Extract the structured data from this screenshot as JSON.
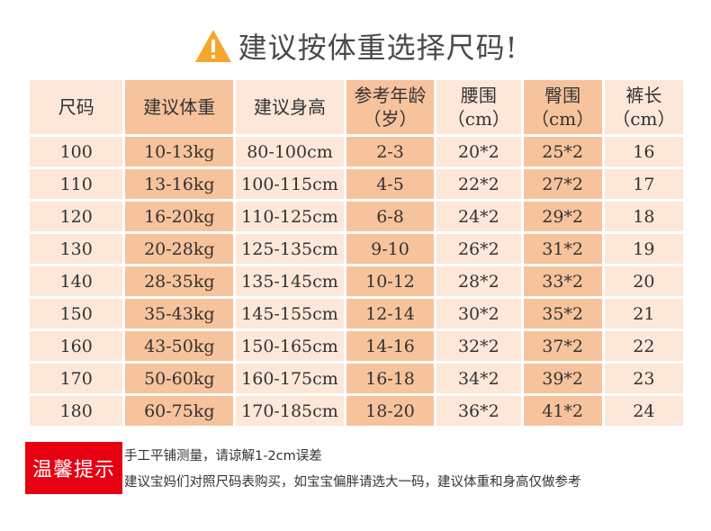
{
  "title": "建议按体重选择尺码!",
  "icon": "warning-triangle-icon",
  "colors": {
    "light_cell": "#fde7d8",
    "dark_cell": "#f7c39c",
    "badge": "#e60012"
  },
  "table": {
    "headers": [
      {
        "line1": "尺码",
        "line2": ""
      },
      {
        "line1": "建议体重",
        "line2": ""
      },
      {
        "line1": "建议身高",
        "line2": ""
      },
      {
        "line1": "参考年龄",
        "line2": "（岁）"
      },
      {
        "line1": "腰围",
        "line2": "（cm）"
      },
      {
        "line1": "臀围",
        "line2": "（cm）"
      },
      {
        "line1": "裤长",
        "line2": "（cm）"
      }
    ],
    "rows": [
      [
        "100",
        "10-13kg",
        "80-100cm",
        "2-3",
        "20*2",
        "25*2",
        "16"
      ],
      [
        "110",
        "13-16kg",
        "100-115cm",
        "4-5",
        "22*2",
        "27*2",
        "17"
      ],
      [
        "120",
        "16-20kg",
        "110-125cm",
        "6-8",
        "24*2",
        "29*2",
        "18"
      ],
      [
        "130",
        "20-28kg",
        "125-135cm",
        "9-10",
        "26*2",
        "31*2",
        "19"
      ],
      [
        "140",
        "28-35kg",
        "135-145cm",
        "10-12",
        "28*2",
        "33*2",
        "20"
      ],
      [
        "150",
        "35-43kg",
        "145-155cm",
        "12-14",
        "30*2",
        "35*2",
        "21"
      ],
      [
        "160",
        "43-50kg",
        "150-165cm",
        "14-16",
        "32*2",
        "37*2",
        "22"
      ],
      [
        "170",
        "50-60kg",
        "160-175cm",
        "16-18",
        "34*2",
        "39*2",
        "23"
      ],
      [
        "180",
        "60-75kg",
        "170-185cm",
        "18-20",
        "36*2",
        "41*2",
        "24"
      ]
    ]
  },
  "tips": {
    "badge": "温馨提示",
    "line1": "手工平铺测量，请谅解1-2cm误差",
    "line2": "建议宝妈们对照尺码表购买，如宝宝偏胖请选大一码，建议体重和身高仅做参考"
  }
}
